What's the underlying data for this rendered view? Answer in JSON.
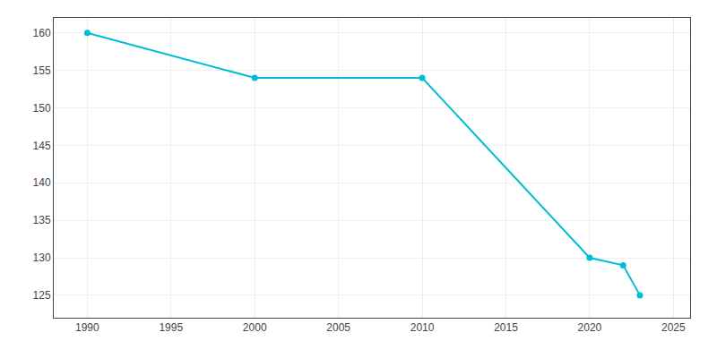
{
  "chart_data": {
    "type": "line",
    "x": [
      1990,
      2000,
      2010,
      2020,
      2022,
      2023
    ],
    "values": [
      160,
      154,
      154,
      130,
      129,
      125
    ],
    "color": "#00BCD4",
    "marker": "circle",
    "xlim": [
      1988,
      2026
    ],
    "xticks": [
      1990,
      1995,
      2000,
      2005,
      2010,
      2015,
      2020,
      2025
    ],
    "ylim": [
      122,
      162
    ],
    "yticks": [
      125,
      130,
      135,
      140,
      145,
      150,
      155,
      160
    ],
    "grid": true
  }
}
